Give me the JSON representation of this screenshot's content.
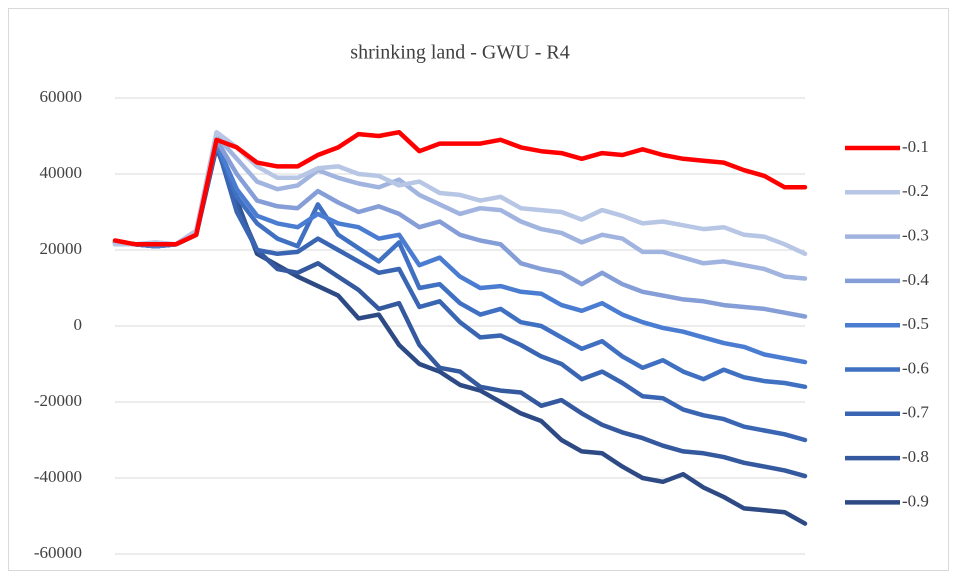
{
  "chart_data": {
    "type": "line",
    "title": "shrinking land - GWU - R4",
    "categories": [
      null,
      null,
      null,
      null,
      null,
      null,
      null,
      null,
      null,
      null,
      null,
      null,
      null,
      null,
      null,
      null,
      null,
      null,
      null,
      null,
      null,
      null,
      null,
      null,
      null,
      null,
      null,
      null,
      null,
      null,
      null,
      null,
      null,
      null,
      null
    ],
    "ylim": [
      -60000,
      60000
    ],
    "yticks": [
      -60000,
      -40000,
      -20000,
      0,
      20000,
      40000,
      60000
    ],
    "grid": true,
    "legend": "right",
    "series": [
      {
        "name": "-0.1",
        "color": "#ff0000",
        "values": [
          22500,
          21500,
          21500,
          21500,
          24000,
          49000,
          47000,
          43000,
          42000,
          42000,
          45000,
          47000,
          50500,
          50000,
          51000,
          46000,
          48000,
          48000,
          48000,
          49000,
          47000,
          46000,
          45500,
          44000,
          45500,
          45000,
          46500,
          45000,
          44000,
          43500,
          43000,
          41000,
          39500,
          36500,
          36500
        ]
      },
      {
        "name": "-0.2",
        "color": "#b7c6e5",
        "values": [
          21500,
          21500,
          22000,
          21500,
          25000,
          51000,
          47000,
          42000,
          39000,
          39000,
          41500,
          42000,
          40000,
          39500,
          37000,
          38000,
          35000,
          34500,
          33000,
          34000,
          31000,
          30500,
          30000,
          28000,
          30500,
          29000,
          27000,
          27500,
          26500,
          25500,
          26000,
          24000,
          23500,
          21500,
          19000
        ]
      },
      {
        "name": "-0.3",
        "color": "#a0b4df",
        "values": [
          21500,
          21500,
          21500,
          21500,
          25000,
          50000,
          44000,
          38000,
          36000,
          37000,
          41000,
          39000,
          37500,
          36500,
          38500,
          34500,
          32000,
          29500,
          31000,
          30500,
          27500,
          25500,
          24500,
          22000,
          24000,
          23000,
          19500,
          19500,
          18000,
          16500,
          17000,
          16000,
          15000,
          13000,
          12500
        ]
      },
      {
        "name": "-0.4",
        "color": "#859ed7",
        "values": [
          22000,
          21500,
          21500,
          21500,
          25000,
          49000,
          40000,
          33000,
          31500,
          31000,
          35500,
          32500,
          30000,
          31500,
          29500,
          26000,
          27500,
          24000,
          22500,
          21500,
          16500,
          15000,
          14000,
          11000,
          14000,
          11000,
          9000,
          8000,
          7000,
          6500,
          5500,
          5000,
          4500,
          3500,
          2500
        ]
      },
      {
        "name": "-0.5",
        "color": "#4a7dd1",
        "values": [
          22000,
          21500,
          21000,
          21500,
          25000,
          48000,
          36000,
          29000,
          27000,
          26000,
          29500,
          27000,
          26000,
          23000,
          24000,
          16000,
          18000,
          13000,
          10000,
          10500,
          9000,
          8500,
          5500,
          4000,
          6000,
          3000,
          1000,
          -500,
          -1500,
          -3000,
          -4500,
          -5500,
          -7500,
          -8500,
          -9500
        ]
      },
      {
        "name": "-0.6",
        "color": "#3f70c1",
        "values": [
          22000,
          21500,
          21000,
          21500,
          24500,
          48000,
          34000,
          27000,
          23000,
          21000,
          32000,
          24000,
          20500,
          17000,
          22000,
          10000,
          11000,
          6000,
          3000,
          4500,
          1000,
          0,
          -3000,
          -6000,
          -4000,
          -8000,
          -11000,
          -9000,
          -12000,
          -14000,
          -11500,
          -13500,
          -14500,
          -15000,
          -16000
        ]
      },
      {
        "name": "-0.7",
        "color": "#3a65b2",
        "values": [
          22000,
          21500,
          21000,
          21500,
          24500,
          48000,
          30000,
          20000,
          19000,
          19500,
          23000,
          20000,
          17000,
          14000,
          15000,
          5000,
          6500,
          1000,
          -3000,
          -2500,
          -5000,
          -8000,
          -10000,
          -14000,
          -12000,
          -15000,
          -18500,
          -19000,
          -22000,
          -23500,
          -24500,
          -26500,
          -27500,
          -28500,
          -30000
        ]
      },
      {
        "name": "-0.8",
        "color": "#34599e",
        "values": [
          22000,
          21500,
          21000,
          21500,
          24000,
          48000,
          32000,
          20000,
          15000,
          14000,
          16500,
          13000,
          9500,
          4500,
          6000,
          -5000,
          -11000,
          -12000,
          -16000,
          -17000,
          -17500,
          -21000,
          -19500,
          -23000,
          -26000,
          -28000,
          -29500,
          -31500,
          -33000,
          -33500,
          -34500,
          -36000,
          -37000,
          -38000,
          -39500
        ]
      },
      {
        "name": "-0.9",
        "color": "#2d4a85",
        "values": [
          22000,
          21500,
          21000,
          21500,
          24000,
          47000,
          33000,
          19000,
          16000,
          13000,
          10500,
          8000,
          2000,
          3000,
          -5000,
          -10000,
          -12000,
          -15500,
          -17000,
          -20000,
          -23000,
          -25000,
          -30000,
          -33000,
          -33500,
          -37000,
          -40000,
          -41000,
          -39000,
          -42500,
          -45000,
          -48000,
          -48500,
          -49000,
          -52000
        ]
      }
    ]
  }
}
